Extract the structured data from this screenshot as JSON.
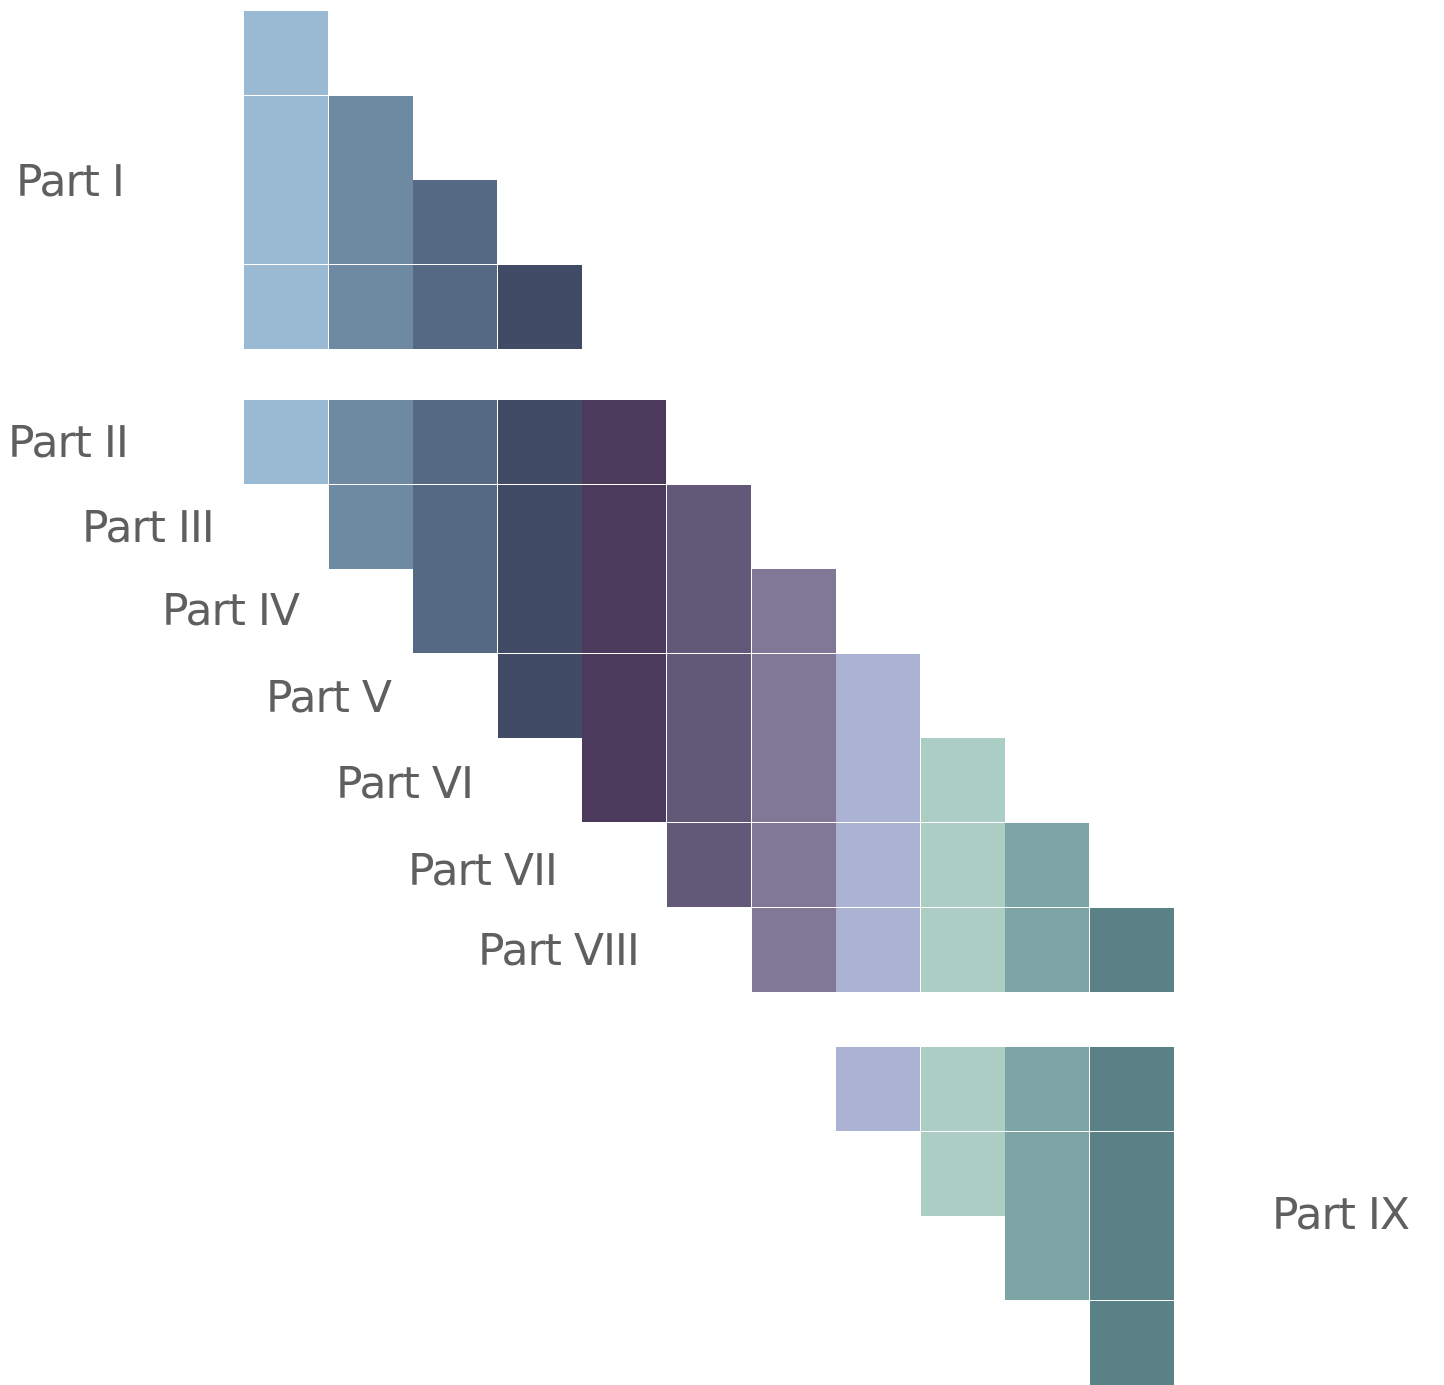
{
  "palette": {
    "c1": "#9abad4",
    "c2": "#6e89a2",
    "c3": "#566984",
    "c4": "#424b66",
    "c5": "#4b3a5c",
    "c6": "#625877",
    "c7": "#817897",
    "c8": "#abb2d3",
    "c9": "#abcdc4",
    "c10": "#7da5a5",
    "c11": "#5a8286",
    "text": "#5f5f5f"
  },
  "labels": {
    "part_1": "Part I",
    "part_2": "Part II",
    "part_3": "Part III",
    "part_4": "Part IV",
    "part_5": "Part V",
    "part_6": "Part VI",
    "part_7": "Part VII",
    "part_8": "Part VIII",
    "part_9": "Part IX"
  },
  "groups": [
    {
      "name": "part-1",
      "rows": [
        {
          "start": 1,
          "end": 1
        },
        {
          "start": 1,
          "end": 2
        },
        {
          "start": 1,
          "end": 3
        },
        {
          "start": 1,
          "end": 4
        }
      ]
    },
    {
      "name": "parts-2-8",
      "rows": [
        {
          "start": 1,
          "end": 5
        },
        {
          "start": 2,
          "end": 6
        },
        {
          "start": 3,
          "end": 7
        },
        {
          "start": 4,
          "end": 8
        },
        {
          "start": 5,
          "end": 9
        },
        {
          "start": 6,
          "end": 10
        },
        {
          "start": 7,
          "end": 11
        }
      ]
    },
    {
      "name": "part-9",
      "rows": [
        {
          "start": 8,
          "end": 11
        },
        {
          "start": 9,
          "end": 11
        },
        {
          "start": 10,
          "end": 11
        },
        {
          "start": 11,
          "end": 11
        }
      ]
    }
  ]
}
